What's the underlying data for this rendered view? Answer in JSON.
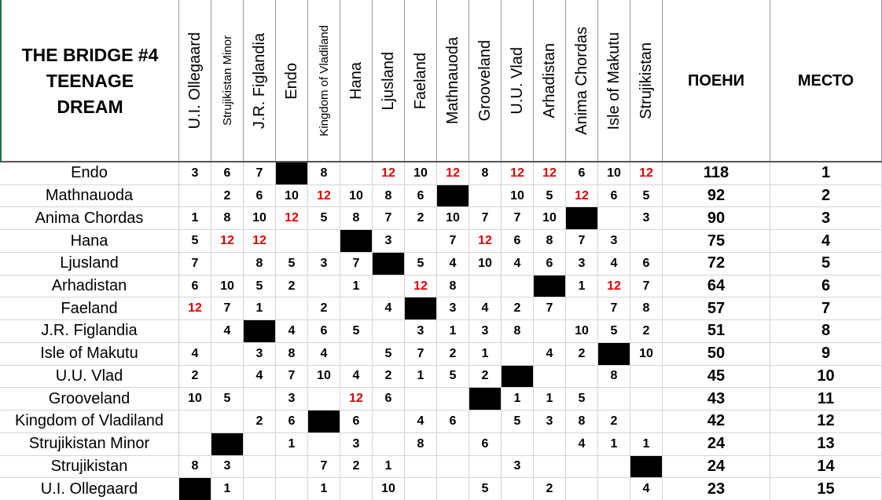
{
  "header": {
    "title": [
      "THE BRIDGE #4",
      "TEENAGE",
      "DREAM"
    ],
    "columns": [
      "U.I. Ollegaard",
      "Strujikistan Minor",
      "J.R. Figlandia",
      "Endo",
      "Kingdom of Vladiland",
      "Hana",
      "Ljusland",
      "Faeland",
      "Mathnauoda",
      "Grooveland",
      "U.U. Vlad",
      "Arhadistan",
      "Anima Chordas",
      "Isle of Makutu",
      "Strujikistan"
    ],
    "points_label": "ПОЕНИ",
    "place_label": "МЕСТО"
  },
  "rows": [
    {
      "country": "Endo",
      "scores": [
        3,
        6,
        7,
        null,
        8,
        null,
        12,
        10,
        12,
        8,
        12,
        12,
        6,
        10,
        12
      ],
      "points": 118,
      "place": 1
    },
    {
      "country": "Mathnauoda",
      "scores": [
        null,
        2,
        6,
        10,
        12,
        10,
        8,
        6,
        null,
        null,
        10,
        5,
        12,
        6,
        5
      ],
      "points": 92,
      "place": 2
    },
    {
      "country": "Anima Chordas",
      "scores": [
        1,
        8,
        10,
        12,
        5,
        8,
        7,
        2,
        10,
        7,
        7,
        10,
        null,
        null,
        3
      ],
      "points": 90,
      "place": 3
    },
    {
      "country": "Hana",
      "scores": [
        5,
        12,
        12,
        null,
        null,
        null,
        3,
        null,
        7,
        12,
        6,
        8,
        7,
        3,
        null
      ],
      "points": 75,
      "place": 4
    },
    {
      "country": "Ljusland",
      "scores": [
        7,
        null,
        8,
        5,
        3,
        7,
        null,
        5,
        4,
        10,
        4,
        6,
        3,
        4,
        6
      ],
      "points": 72,
      "place": 5
    },
    {
      "country": "Arhadistan",
      "scores": [
        6,
        10,
        5,
        2,
        null,
        1,
        null,
        12,
        8,
        null,
        null,
        null,
        1,
        12,
        7
      ],
      "points": 64,
      "place": 6
    },
    {
      "country": "Faeland",
      "scores": [
        12,
        7,
        1,
        null,
        2,
        null,
        4,
        null,
        3,
        4,
        2,
        7,
        null,
        7,
        8
      ],
      "points": 57,
      "place": 7
    },
    {
      "country": "J.R. Figlandia",
      "scores": [
        null,
        4,
        null,
        4,
        6,
        5,
        null,
        3,
        1,
        3,
        8,
        null,
        10,
        5,
        2
      ],
      "points": 51,
      "place": 8
    },
    {
      "country": "Isle of Makutu",
      "scores": [
        4,
        null,
        3,
        8,
        4,
        null,
        5,
        7,
        2,
        1,
        null,
        4,
        2,
        null,
        10
      ],
      "points": 50,
      "place": 9
    },
    {
      "country": "U.U. Vlad",
      "scores": [
        2,
        null,
        4,
        7,
        10,
        4,
        2,
        1,
        5,
        2,
        null,
        null,
        null,
        8,
        null
      ],
      "points": 45,
      "place": 10
    },
    {
      "country": "Grooveland",
      "scores": [
        10,
        5,
        null,
        3,
        null,
        12,
        6,
        null,
        null,
        null,
        1,
        1,
        5,
        null,
        null
      ],
      "points": 43,
      "place": 11
    },
    {
      "country": "Kingdom of Vladiland",
      "scores": [
        null,
        null,
        2,
        6,
        null,
        6,
        null,
        4,
        6,
        null,
        5,
        3,
        8,
        2,
        null
      ],
      "points": 42,
      "place": 12
    },
    {
      "country": "Strujikistan Minor",
      "scores": [
        null,
        null,
        null,
        1,
        null,
        3,
        null,
        8,
        null,
        6,
        null,
        null,
        4,
        1,
        1
      ],
      "points": 24,
      "place": 13
    },
    {
      "country": "Strujikistan",
      "scores": [
        8,
        3,
        null,
        null,
        7,
        2,
        1,
        null,
        null,
        null,
        3,
        null,
        null,
        null,
        null
      ],
      "points": 24,
      "place": 14
    },
    {
      "country": "U.I. Ollegaard",
      "scores": [
        null,
        1,
        null,
        null,
        1,
        null,
        10,
        null,
        null,
        5,
        null,
        2,
        null,
        null,
        4
      ],
      "points": 23,
      "place": 15
    }
  ]
}
